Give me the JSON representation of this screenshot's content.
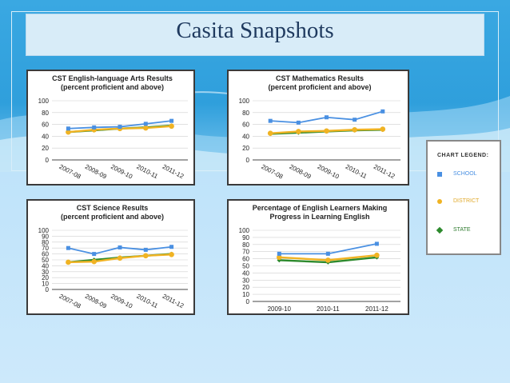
{
  "slide": {
    "title": "Casita Snapshots"
  },
  "colors": {
    "school": "#4a90e2",
    "district": "#f0b323",
    "state": "#2d8a2d"
  },
  "legend": {
    "title": "CHART LEGEND:",
    "items": [
      {
        "label": "SCHOOL",
        "shape": "square",
        "color": "#4a90e2"
      },
      {
        "label": "DISTRICT",
        "shape": "circle",
        "color": "#f0b323"
      },
      {
        "label": "STATE",
        "shape": "diamond",
        "color": "#2d8a2d"
      }
    ]
  },
  "chart_data": [
    {
      "id": "ela",
      "type": "line",
      "title": "CST English-language Arts Results",
      "subtitle": "(percent proficient and above)",
      "categories": [
        "2007-08",
        "2008-09",
        "2009-10",
        "2010-11",
        "2011-12"
      ],
      "ylim": [
        0,
        100
      ],
      "yticks": [
        0,
        20,
        40,
        60,
        80,
        100
      ],
      "grid": true,
      "series": [
        {
          "key": "state",
          "values": [
            47,
            50,
            53,
            55,
            58
          ]
        },
        {
          "key": "district",
          "values": [
            47,
            51,
            53,
            54,
            57
          ]
        },
        {
          "key": "school",
          "values": [
            53,
            55,
            56,
            61,
            66
          ]
        }
      ]
    },
    {
      "id": "math",
      "type": "line",
      "title": "CST Mathematics Results",
      "subtitle": "(percent proficient and above)",
      "categories": [
        "2007-08",
        "2008-09",
        "2009-10",
        "2010-11",
        "2011-12"
      ],
      "ylim": [
        0,
        100
      ],
      "yticks": [
        0,
        20,
        40,
        60,
        80,
        100
      ],
      "grid": true,
      "series": [
        {
          "key": "state",
          "values": [
            44,
            46,
            48,
            50,
            51
          ]
        },
        {
          "key": "district",
          "values": [
            45,
            48,
            49,
            51,
            52
          ]
        },
        {
          "key": "school",
          "values": [
            66,
            63,
            72,
            68,
            82
          ]
        }
      ]
    },
    {
      "id": "science",
      "type": "line",
      "title": "CST Science Results",
      "subtitle": "(percent proficient and above)",
      "categories": [
        "2007-08",
        "2008-09",
        "2009-10",
        "2010-11",
        "2011-12"
      ],
      "ylim": [
        0,
        100
      ],
      "yticks": [
        0,
        10,
        20,
        30,
        40,
        50,
        60,
        70,
        80,
        90,
        100
      ],
      "grid": true,
      "series": [
        {
          "key": "state",
          "values": [
            46,
            50,
            54,
            57,
            60
          ]
        },
        {
          "key": "district",
          "values": [
            46,
            47,
            53,
            57,
            59
          ]
        },
        {
          "key": "school",
          "values": [
            70,
            60,
            71,
            67,
            72
          ]
        }
      ]
    },
    {
      "id": "el",
      "type": "line",
      "title": "Percentage of English Learners Making",
      "subtitle": "Progress in Learning English",
      "categories": [
        "2009-10",
        "2010-11",
        "2011-12"
      ],
      "ylim": [
        0,
        100
      ],
      "yticks": [
        0,
        10,
        20,
        30,
        40,
        50,
        60,
        70,
        80,
        90,
        100
      ],
      "grid": true,
      "series": [
        {
          "key": "state",
          "values": [
            58,
            55,
            62
          ]
        },
        {
          "key": "district",
          "values": [
            62,
            58,
            65
          ]
        },
        {
          "key": "school",
          "values": [
            67,
            67,
            81
          ]
        }
      ]
    }
  ]
}
